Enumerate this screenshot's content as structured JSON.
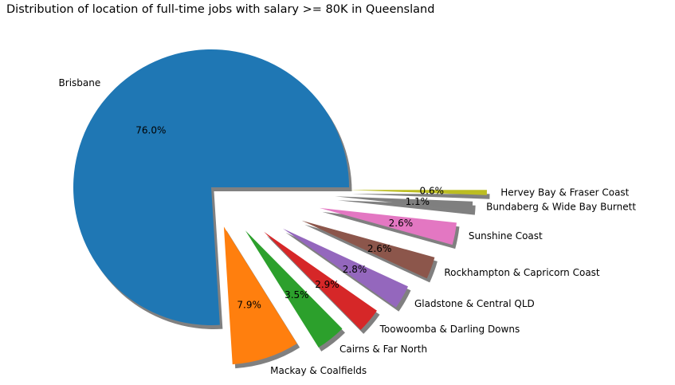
{
  "chart_data": {
    "type": "pie",
    "title": "Distribution of location of full-time jobs with salary >= 80K in Queensland",
    "slices": [
      {
        "label": "Brisbane",
        "pct": 76.0,
        "pct_label": "76.0%",
        "color": "#1f77b4"
      },
      {
        "label": "Mackay & Coalfields",
        "pct": 7.9,
        "pct_label": "7.9%",
        "color": "#ff7f0e"
      },
      {
        "label": "Cairns & Far North",
        "pct": 3.5,
        "pct_label": "3.5%",
        "color": "#2ca02c"
      },
      {
        "label": "Toowoomba & Darling Downs",
        "pct": 2.9,
        "pct_label": "2.9%",
        "color": "#d62728"
      },
      {
        "label": "Gladstone & Central QLD",
        "pct": 2.8,
        "pct_label": "2.8%",
        "color": "#9467bd"
      },
      {
        "label": "Rockhampton & Capricorn Coast",
        "pct": 2.6,
        "pct_label": "2.6%",
        "color": "#8c564b"
      },
      {
        "label": "Sunshine Coast",
        "pct": 2.6,
        "pct_label": "2.6%",
        "color": "#e377c2"
      },
      {
        "label": "Bundaberg & Wide Bay Burnett",
        "pct": 1.1,
        "pct_label": "1.1%",
        "color": "#7f7f7f"
      },
      {
        "label": "Hervey Bay & Fraser Coast",
        "pct": 0.6,
        "pct_label": "0.6%",
        "color": "#bcbd22"
      }
    ],
    "start_angle_deg": 0,
    "direction": "counterclockwise",
    "shadow": true
  }
}
